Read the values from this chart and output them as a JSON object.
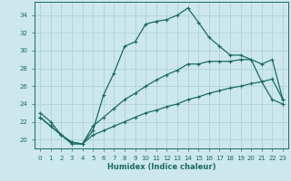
{
  "xlabel": "Humidex (Indice chaleur)",
  "background_color": "#cce8ec",
  "grid_color": "#aacdd4",
  "line_color": "#1a6b60",
  "xlim": [
    -0.5,
    23.5
  ],
  "ylim": [
    19,
    35.5
  ],
  "yticks": [
    20,
    22,
    24,
    26,
    28,
    30,
    32,
    34
  ],
  "xticks": [
    0,
    1,
    2,
    3,
    4,
    5,
    6,
    7,
    8,
    9,
    10,
    11,
    12,
    13,
    14,
    15,
    16,
    17,
    18,
    19,
    20,
    21,
    22,
    23
  ],
  "line1_x": [
    0,
    1,
    2,
    3,
    4,
    5,
    6,
    7,
    8,
    9,
    10,
    11,
    12,
    13,
    14,
    15,
    16,
    17,
    18,
    19,
    20,
    21,
    22,
    23
  ],
  "line1_y": [
    23.0,
    22.0,
    20.5,
    19.5,
    19.5,
    21.0,
    25.0,
    27.5,
    30.5,
    31.0,
    33.0,
    33.3,
    33.5,
    34.0,
    34.8,
    33.2,
    31.5,
    30.5,
    29.5,
    29.5,
    29.0,
    26.5,
    24.5,
    24.0
  ],
  "line2_x": [
    0,
    1,
    2,
    3,
    4,
    5,
    6,
    7,
    8,
    9,
    10,
    11,
    12,
    13,
    14,
    15,
    16,
    17,
    18,
    19,
    20,
    21,
    22,
    23
  ],
  "line2_y": [
    22.5,
    21.5,
    20.5,
    19.7,
    19.5,
    21.5,
    22.5,
    23.5,
    24.5,
    25.2,
    26.0,
    26.7,
    27.3,
    27.8,
    28.5,
    28.5,
    28.8,
    28.8,
    28.8,
    29.0,
    29.0,
    28.5,
    29.0,
    24.5
  ],
  "line3_x": [
    0,
    1,
    2,
    3,
    4,
    5,
    6,
    7,
    8,
    9,
    10,
    11,
    12,
    13,
    14,
    15,
    16,
    17,
    18,
    19,
    20,
    21,
    22,
    23
  ],
  "line3_y": [
    22.5,
    21.5,
    20.5,
    19.7,
    19.5,
    20.5,
    21.0,
    21.5,
    22.0,
    22.5,
    23.0,
    23.3,
    23.7,
    24.0,
    24.5,
    24.8,
    25.2,
    25.5,
    25.8,
    26.0,
    26.3,
    26.5,
    26.8,
    24.5
  ]
}
